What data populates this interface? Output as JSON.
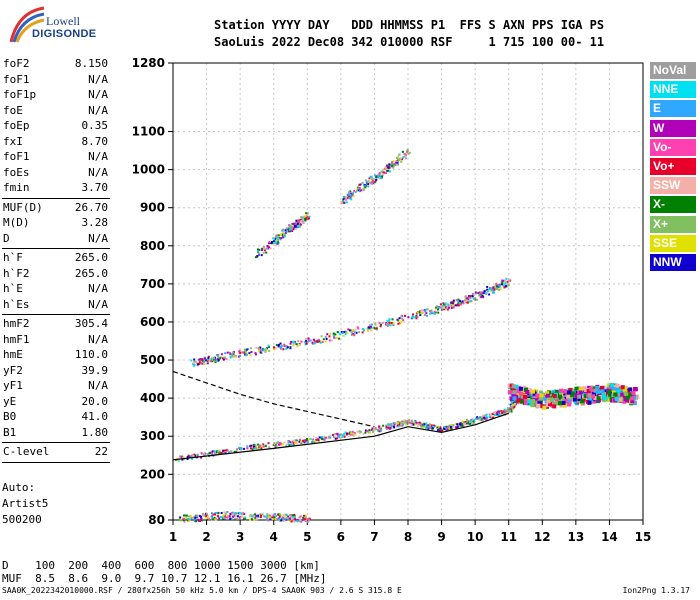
{
  "logo": {
    "line1": "Lowell",
    "line2": "DIGISONDE"
  },
  "header": {
    "line1": "Station YYYY DAY   DDD HHMMSS P1  FFS S AXN PPS IGA PS",
    "line2": "SaoLuis 2022 Dec08 342 010000 RSF     1 715 100 00- 11"
  },
  "params": [
    {
      "k": "foF2",
      "v": "8.150"
    },
    {
      "k": "foF1",
      "v": "N/A"
    },
    {
      "k": "foF1p",
      "v": "N/A"
    },
    {
      "k": "foE",
      "v": "N/A"
    },
    {
      "k": "foEp",
      "v": "0.35"
    },
    {
      "k": "fxI",
      "v": "8.70"
    },
    {
      "k": "foF1",
      "v": "N/A"
    },
    {
      "k": "foEs",
      "v": "N/A"
    },
    {
      "k": "fmin",
      "v": "3.70"
    },
    {
      "k": "MUF(D)",
      "v": "26.70"
    },
    {
      "k": "M(D)",
      "v": "3.28"
    },
    {
      "k": "D",
      "v": "N/A"
    },
    {
      "k": "h`F",
      "v": "265.0"
    },
    {
      "k": "h`F2",
      "v": "265.0"
    },
    {
      "k": "h`E",
      "v": "N/A"
    },
    {
      "k": "h`Es",
      "v": "N/A"
    },
    {
      "k": "hmF2",
      "v": "305.4"
    },
    {
      "k": "hmF1",
      "v": "N/A"
    },
    {
      "k": "hmE",
      "v": "110.0"
    },
    {
      "k": "yF2",
      "v": "39.9"
    },
    {
      "k": "yF1",
      "v": "N/A"
    },
    {
      "k": "yE",
      "v": "20.0"
    },
    {
      "k": "B0",
      "v": "41.0"
    },
    {
      "k": "B1",
      "v": "1.80"
    },
    {
      "k": "C-level",
      "v": "22"
    }
  ],
  "extra": {
    "l1": "Auto:",
    "l2": "Artist5",
    "l3": "500200"
  },
  "dmuf": {
    "d_line": "D    100  200  400  600  800 1000 1500 3000 [km]",
    "muf_line": "MUF  8.5  8.6  9.0  9.7 10.7 12.1 16.1 26.7 [MHz]"
  },
  "footer": "SAA0K_2022342010000.RSF / 280fx256h 50 kHz 5.0 km / DPS-4 SAA0K 903 / 2.6 S 315.8 E",
  "version": "Ion2Png 1.3.17",
  "legend": [
    {
      "label": "NoVal",
      "color": "#9e9e9e"
    },
    {
      "label": "NNE",
      "color": "#00e0f0"
    },
    {
      "label": "E",
      "color": "#30a8ff"
    },
    {
      "label": "W",
      "color": "#b000b8"
    },
    {
      "label": "Vo-",
      "color": "#ff40b0"
    },
    {
      "label": "Vo+",
      "color": "#e8002a"
    },
    {
      "label": "SSW",
      "color": "#f4b0a8"
    },
    {
      "label": "X-",
      "color": "#008000"
    },
    {
      "label": "X+",
      "color": "#80c060"
    },
    {
      "label": "SSE",
      "color": "#e0e000"
    },
    {
      "label": "NNW",
      "color": "#1000d0"
    }
  ],
  "chart_data": {
    "type": "scatter",
    "xlim": [
      1,
      15
    ],
    "ylim": [
      80,
      1280
    ],
    "xticks": [
      "1",
      "2",
      "3",
      "4",
      "5",
      "6",
      "7",
      "8",
      "9",
      "10",
      "11",
      "12",
      "13",
      "14",
      "15"
    ],
    "yticks": [
      80,
      200,
      300,
      400,
      500,
      600,
      700,
      800,
      900,
      1000,
      1100,
      1280
    ],
    "xticks_num": [
      1,
      2,
      3,
      4,
      5,
      6,
      7,
      8,
      9,
      10,
      11,
      12,
      13,
      14,
      15
    ],
    "grid": true,
    "series": [
      {
        "points": [
          [
            1,
            240
          ],
          [
            3,
            270
          ],
          [
            5,
            290
          ],
          [
            7,
            320
          ],
          [
            8,
            340
          ],
          [
            9,
            320
          ],
          [
            10,
            345
          ],
          [
            11,
            370
          ],
          [
            11.2,
            400
          ]
        ]
      },
      {
        "points": [
          [
            1.5,
            495
          ],
          [
            3,
            520
          ],
          [
            5,
            550
          ],
          [
            7,
            590
          ],
          [
            9,
            640
          ],
          [
            10,
            670
          ],
          [
            11,
            710
          ]
        ]
      },
      {
        "points": [
          [
            3.5,
            780
          ],
          [
            4.5,
            850
          ],
          [
            5,
            880
          ]
        ]
      },
      {
        "points": [
          [
            6,
            920
          ],
          [
            7,
            980
          ],
          [
            8,
            1050
          ]
        ]
      },
      {
        "points": [
          [
            11,
            420
          ],
          [
            12,
            400
          ],
          [
            13,
            410
          ],
          [
            14,
            420
          ],
          [
            14.7,
            410
          ]
        ]
      },
      {
        "points": [
          [
            1.2,
            85
          ],
          [
            2.5,
            95
          ],
          [
            4,
            90
          ],
          [
            5,
            85
          ]
        ]
      }
    ],
    "profile": [
      [
        1,
        470
      ],
      [
        2,
        440
      ],
      [
        3,
        410
      ],
      [
        4,
        385
      ],
      [
        5,
        365
      ],
      [
        6,
        345
      ],
      [
        7,
        325
      ]
    ],
    "trace": [
      [
        1,
        238
      ],
      [
        4,
        268
      ],
      [
        7,
        300
      ],
      [
        8,
        325
      ],
      [
        9,
        310
      ],
      [
        10,
        330
      ],
      [
        11,
        360
      ]
    ]
  }
}
